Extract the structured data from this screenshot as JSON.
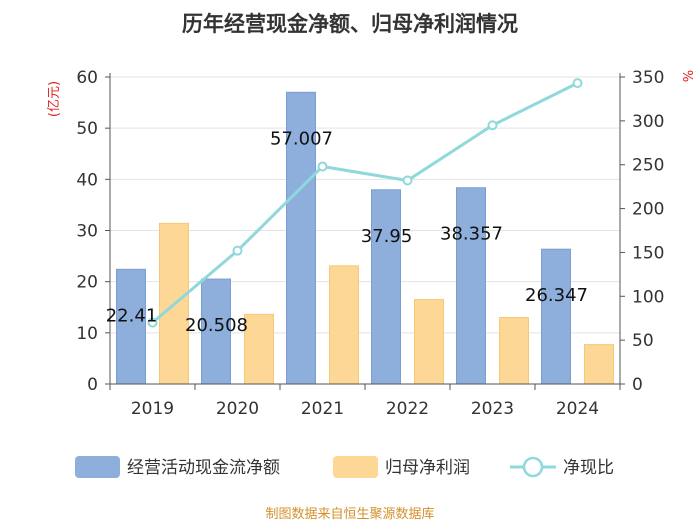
{
  "title": "历年经营现金净额、归母净利润情况",
  "source": "制图数据来自恒生聚源数据库",
  "chart_data": {
    "type": "bar",
    "categories": [
      "2019",
      "2020",
      "2021",
      "2022",
      "2023",
      "2024"
    ],
    "left_axis": {
      "unit": "(亿元)",
      "ylim": [
        0,
        60
      ],
      "ticks": [
        0,
        10,
        20,
        30,
        40,
        50,
        60
      ]
    },
    "right_axis": {
      "unit": "%",
      "ylim": [
        0,
        350
      ],
      "ticks": [
        0,
        50,
        100,
        150,
        200,
        250,
        300,
        350
      ]
    },
    "series": [
      {
        "name": "经营活动现金流净额",
        "type": "bar",
        "axis": "left",
        "color": "#8eaedb",
        "values": [
          22.41,
          20.508,
          57.007,
          37.95,
          38.357,
          26.347
        ],
        "labels": [
          "22.41",
          "20.508",
          "57.007",
          "37.95",
          "38.357",
          "26.347"
        ]
      },
      {
        "name": "归母净利润",
        "type": "bar",
        "axis": "left",
        "color": "#fdd795",
        "values": [
          31.4,
          13.6,
          23.1,
          16.5,
          13.0,
          7.7
        ]
      },
      {
        "name": "净现比",
        "type": "line",
        "axis": "right",
        "color": "#8fd8dc",
        "values": [
          70,
          152,
          248,
          232,
          295,
          343
        ]
      }
    ],
    "grid": true,
    "legend_position": "bottom"
  }
}
